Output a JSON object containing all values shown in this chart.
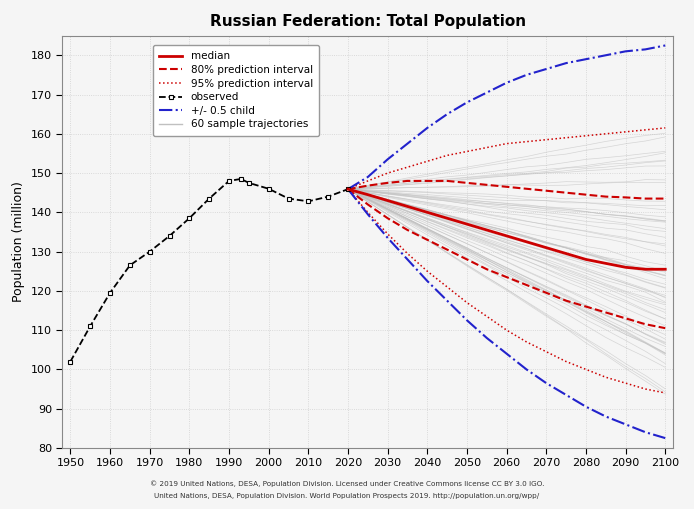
{
  "title": "Russian Federation: Total Population",
  "ylabel": "Population (million)",
  "xlim": [
    1948,
    2102
  ],
  "ylim": [
    80,
    185
  ],
  "yticks": [
    80,
    90,
    100,
    110,
    120,
    130,
    140,
    150,
    160,
    170,
    180
  ],
  "xticks": [
    1950,
    1960,
    1970,
    1980,
    1990,
    2000,
    2010,
    2020,
    2030,
    2040,
    2050,
    2060,
    2070,
    2080,
    2090,
    2100
  ],
  "observed_years": [
    1950,
    1955,
    1960,
    1965,
    1970,
    1975,
    1980,
    1985,
    1990,
    1993,
    1995,
    2000,
    2005,
    2010,
    2015,
    2020
  ],
  "observed_values": [
    102.0,
    111.0,
    119.5,
    126.5,
    130.0,
    134.0,
    138.5,
    143.5,
    148.0,
    148.5,
    147.5,
    146.0,
    143.5,
    142.8,
    144.0,
    145.9
  ],
  "forecast_years": [
    2020,
    2025,
    2030,
    2035,
    2040,
    2045,
    2050,
    2055,
    2060,
    2065,
    2070,
    2075,
    2080,
    2085,
    2090,
    2095,
    2100
  ],
  "median": [
    145.9,
    144.5,
    143.0,
    141.5,
    140.0,
    138.5,
    137.0,
    135.5,
    134.0,
    132.5,
    131.0,
    129.5,
    128.0,
    127.0,
    126.0,
    125.5,
    125.5
  ],
  "pi80_upper": [
    145.9,
    146.8,
    147.5,
    148.0,
    148.0,
    148.0,
    147.5,
    147.0,
    146.5,
    146.0,
    145.5,
    145.0,
    144.5,
    144.0,
    143.8,
    143.5,
    143.5
  ],
  "pi80_lower": [
    145.9,
    142.0,
    138.5,
    135.5,
    133.0,
    130.5,
    128.0,
    125.5,
    123.5,
    121.5,
    119.5,
    117.5,
    116.0,
    114.5,
    113.0,
    111.5,
    110.5
  ],
  "pi95_upper": [
    145.9,
    148.0,
    150.0,
    151.5,
    153.0,
    154.5,
    155.5,
    156.5,
    157.5,
    158.0,
    158.5,
    159.0,
    159.5,
    160.0,
    160.5,
    161.0,
    161.5
  ],
  "pi95_lower": [
    145.9,
    140.0,
    134.5,
    129.5,
    125.0,
    121.0,
    117.0,
    113.5,
    110.0,
    107.0,
    104.5,
    102.0,
    100.0,
    98.0,
    96.5,
    95.0,
    94.0
  ],
  "child05_upper": [
    145.9,
    149.0,
    153.5,
    157.5,
    161.5,
    165.0,
    168.0,
    170.5,
    173.0,
    175.0,
    176.5,
    178.0,
    179.0,
    180.0,
    181.0,
    181.5,
    182.5
  ],
  "child05_lower": [
    145.9,
    139.5,
    133.5,
    128.0,
    122.5,
    117.5,
    112.5,
    108.0,
    104.0,
    100.0,
    96.5,
    93.5,
    90.5,
    88.0,
    86.0,
    84.0,
    82.5
  ],
  "n_trajectories": 60,
  "background_color": "#f5f5f5",
  "plot_bg_color": "#f5f5f5",
  "grid_color": "#d0d0d0",
  "observed_color": "#000000",
  "median_color": "#cc0000",
  "pi80_color": "#cc0000",
  "pi95_color": "#cc0000",
  "child05_color": "#2222cc",
  "trajectory_color": "#c0c0c0",
  "footnote_line1": "© 2019 United Nations, DESA, Population Division. Licensed under Creative Commons license CC BY 3.0 IGO.",
  "footnote_line2": "United Nations, DESA, Population Division. World Population Prospects 2019. http://population.un.org/wpp/"
}
